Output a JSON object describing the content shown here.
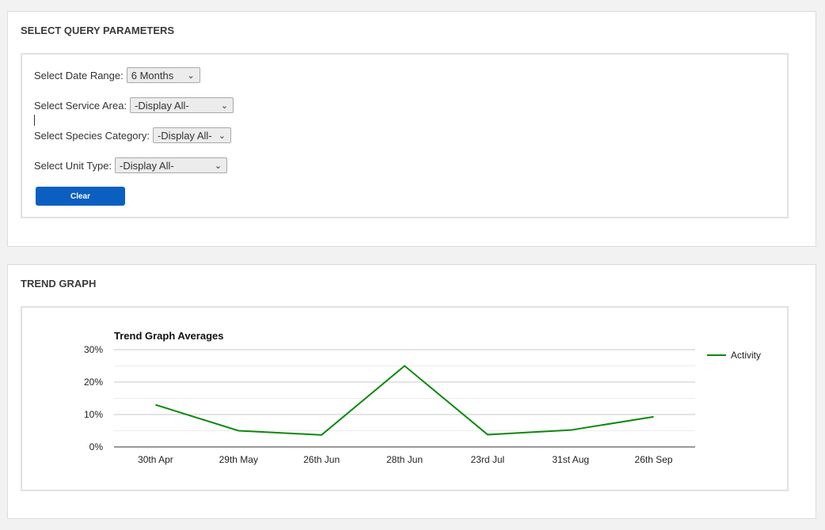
{
  "query_panel": {
    "title": "SELECT QUERY PARAMETERS",
    "date_range": {
      "label": "Select Date Range:",
      "value": "6 Months"
    },
    "service_area": {
      "label": "Select Service Area:",
      "value": "-Display All-"
    },
    "species_category": {
      "label": "Select Species Category:",
      "value": "-Display All-"
    },
    "unit_type": {
      "label": "Select Unit Type:",
      "value": "-Display All-"
    },
    "clear_label": "Clear",
    "accent_color": "#0b5fc0"
  },
  "trend_panel": {
    "title": "TREND GRAPH"
  },
  "chart_data": {
    "type": "line",
    "title": "Trend Graph Averages",
    "categories": [
      "30th Apr",
      "29th May",
      "26th Jun",
      "28th Jun",
      "23rd Jul",
      "31st Aug",
      "26th Sep"
    ],
    "series": [
      {
        "name": "Activity",
        "values": [
          13,
          5,
          3.7,
          25,
          3.8,
          5.2,
          9.3
        ],
        "color": "#0a8a0a"
      }
    ],
    "y_ticks": [
      "0%",
      "10%",
      "20%",
      "30%"
    ],
    "ylim": [
      0,
      30
    ],
    "grid": true,
    "legend": "right"
  }
}
